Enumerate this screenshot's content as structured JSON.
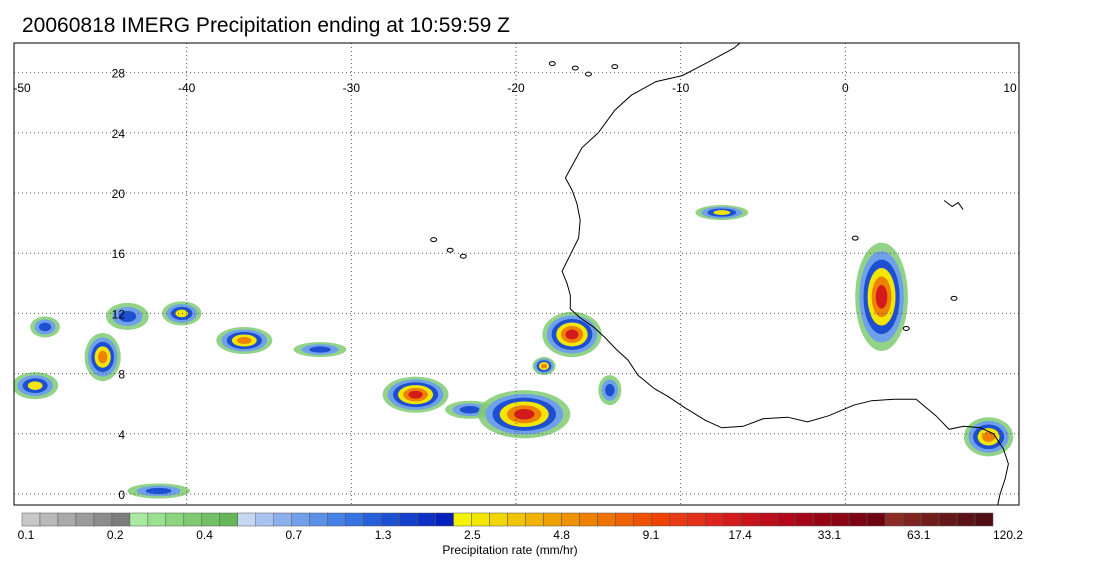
{
  "title": "20060818 IMERG Precipitation ending at 10:59:59 Z",
  "map": {
    "lon_range": [
      -50,
      10
    ],
    "lat_range": [
      -1,
      30
    ],
    "lon_ticks": [
      -50,
      -40,
      -30,
      -20,
      -10,
      0,
      10
    ],
    "lat_ticks": [
      0,
      4,
      8,
      12,
      16,
      20,
      24,
      28
    ],
    "lon_labels": [
      "-50",
      "-40",
      "-30",
      "-20",
      "-10",
      "0",
      "10"
    ],
    "lat_labels": [
      "0",
      "4",
      "8",
      "12",
      "16",
      "20",
      "24",
      "28"
    ],
    "coastline_color": "#000000",
    "grid": "dotted"
  },
  "precip_cells": [
    {
      "lon": -48.6,
      "lat": 11.1,
      "rx": 0.9,
      "ry": 0.7,
      "level": 1
    },
    {
      "lon": -49.2,
      "lat": 7.2,
      "rx": 1.4,
      "ry": 0.9,
      "level": 2
    },
    {
      "lon": -45.1,
      "lat": 9.1,
      "rx": 1.1,
      "ry": 1.6,
      "level": 3
    },
    {
      "lon": -43.6,
      "lat": 11.8,
      "rx": 1.3,
      "ry": 0.9,
      "level": 1
    },
    {
      "lon": -40.3,
      "lat": 12.0,
      "rx": 1.2,
      "ry": 0.8,
      "level": 2
    },
    {
      "lon": -36.5,
      "lat": 10.2,
      "rx": 1.7,
      "ry": 0.9,
      "level": 3
    },
    {
      "lon": -31.9,
      "lat": 9.6,
      "rx": 1.6,
      "ry": 0.5,
      "level": 1
    },
    {
      "lon": -26.1,
      "lat": 6.6,
      "rx": 2.0,
      "ry": 1.2,
      "level": 4
    },
    {
      "lon": -22.8,
      "lat": 5.6,
      "rx": 1.5,
      "ry": 0.6,
      "level": 1
    },
    {
      "lon": -19.5,
      "lat": 5.3,
      "rx": 2.8,
      "ry": 1.6,
      "level": 4
    },
    {
      "lon": -16.6,
      "lat": 10.6,
      "rx": 1.8,
      "ry": 1.5,
      "level": 4
    },
    {
      "lon": -18.3,
      "lat": 8.5,
      "rx": 0.7,
      "ry": 0.6,
      "level": 3
    },
    {
      "lon": -14.3,
      "lat": 6.9,
      "rx": 0.7,
      "ry": 1.0,
      "level": 1
    },
    {
      "lon": -7.5,
      "lat": 18.7,
      "rx": 1.6,
      "ry": 0.5,
      "level": 2
    },
    {
      "lon": 2.2,
      "lat": 13.1,
      "rx": 1.6,
      "ry": 3.6,
      "level": 4
    },
    {
      "lon": 8.7,
      "lat": 3.8,
      "rx": 1.5,
      "ry": 1.3,
      "level": 3
    },
    {
      "lon": -41.7,
      "lat": 0.2,
      "rx": 1.9,
      "ry": 0.5,
      "level": 1
    }
  ],
  "colorbar": {
    "title": "Precipitation rate (mm/hr)",
    "labels": [
      "0.1",
      "0.2",
      "0.4",
      "0.7",
      "1.3",
      "2.5",
      "4.8",
      "9.1",
      "17.4",
      "33.1",
      "63.1",
      "120.2"
    ],
    "colors": [
      "#c8c8c8",
      "#b9b9b9",
      "#aaaaaa",
      "#9b9b9b",
      "#8c8c8c",
      "#7d7d7d",
      "#a9e9a2",
      "#9be090",
      "#8dd57f",
      "#80cb72",
      "#72c065",
      "#65b658",
      "#c6d6f5",
      "#a9c3f1",
      "#8cb0ec",
      "#70a0e9",
      "#5a91e6",
      "#4582e3",
      "#3473e0",
      "#2660d8",
      "#1c4fd1",
      "#1540cc",
      "#0d30c5",
      "#0620bd",
      "#f4f400",
      "#f3e600",
      "#f2d600",
      "#f0c500",
      "#efb300",
      "#eea000",
      "#ee9200",
      "#ee8200",
      "#ee7200",
      "#ee6200",
      "#ee5200",
      "#ee4200",
      "#e93a16",
      "#e3301a",
      "#dc241c",
      "#d31b1d",
      "#c9131c",
      "#bd0d1b",
      "#b2081a",
      "#a40617",
      "#970515",
      "#8a0413",
      "#7c0311",
      "#6f0210",
      "#8b2b24",
      "#7e2420",
      "#721d1c",
      "#661719",
      "#5b1216",
      "#520d14"
    ]
  }
}
